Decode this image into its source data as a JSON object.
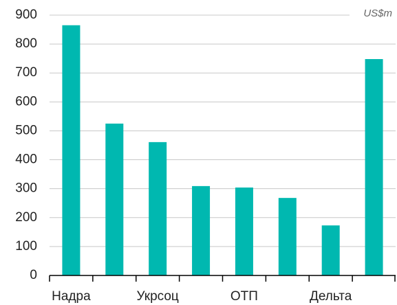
{
  "chart_data": {
    "type": "bar",
    "annotation": "US$m",
    "categories": [
      "Надра",
      null,
      "Укрсоц",
      null,
      "ОТП",
      null,
      "Дельта",
      null
    ],
    "values": [
      865,
      525,
      461,
      309,
      304,
      268,
      173,
      748
    ],
    "color": "#00b8b0",
    "ylim": [
      0,
      900
    ],
    "yticks": [
      0,
      100,
      200,
      300,
      400,
      500,
      600,
      700,
      800,
      900
    ],
    "grid": true
  }
}
